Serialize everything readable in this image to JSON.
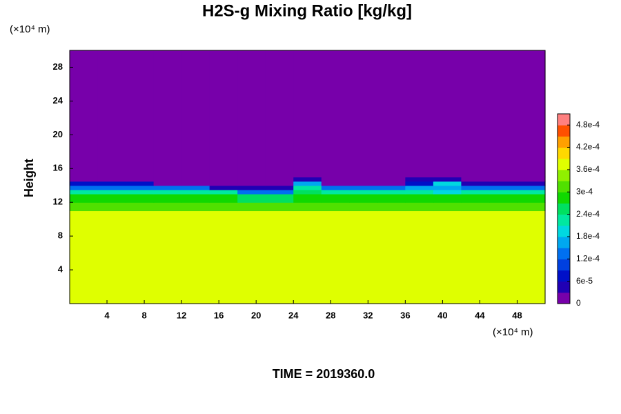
{
  "chart_data": {
    "type": "heatmap",
    "title": "H2S-g Mixing Ratio [kg/kg]",
    "ylabel": "Height",
    "x_unit": "(×10⁴ m)",
    "y_unit": "(×10⁴ m)",
    "footer": "TIME = 2019360.0",
    "xlim": [
      0,
      51
    ],
    "ylim": [
      0,
      30
    ],
    "xticks": [
      4,
      8,
      12,
      16,
      20,
      24,
      28,
      32,
      36,
      40,
      44,
      48
    ],
    "yticks": [
      4,
      8,
      12,
      16,
      20,
      24,
      28
    ],
    "x_edges": [
      0,
      3,
      6,
      9,
      12,
      15,
      18,
      21,
      24,
      27,
      30,
      33,
      36,
      39,
      42,
      45,
      48,
      51
    ],
    "y_edges": [
      0,
      11,
      12,
      13,
      13.5,
      14,
      14.5,
      15,
      30
    ],
    "z": [
      [
        0.00037,
        0.00037,
        0.00037,
        0.00037,
        0.00037,
        0.00037,
        0.00037,
        0.00037,
        0.00037,
        0.00037,
        0.00037,
        0.00037,
        0.00037,
        0.00037,
        0.00037,
        0.00037,
        0.00037
      ],
      [
        0.00033,
        0.00033,
        0.00033,
        0.00033,
        0.00033,
        0.00033,
        0.00033,
        0.00033,
        0.00033,
        0.00033,
        0.00033,
        0.00033,
        0.00033,
        0.00033,
        0.00033,
        0.00033,
        0.00033
      ],
      [
        0.00029,
        0.00029,
        0.00029,
        0.00029,
        0.00029,
        0.00029,
        0.00024,
        0.00024,
        0.00029,
        0.00029,
        0.00029,
        0.00029,
        0.00029,
        0.00029,
        0.00029,
        0.00029,
        0.00029
      ],
      [
        0.00022,
        0.00022,
        0.00022,
        0.00022,
        0.00022,
        0.00022,
        0.00015,
        0.00015,
        0.00024,
        0.00022,
        0.00022,
        0.00022,
        0.00022,
        0.0002,
        0.00022,
        0.00022,
        0.00022
      ],
      [
        0.00014,
        0.00014,
        0.00014,
        0.00014,
        0.00014,
        5e-05,
        5e-05,
        5e-05,
        0.00021,
        0.00014,
        0.00014,
        0.00014,
        0.00016,
        0.00016,
        0.00014,
        0.00014,
        0.00015
      ],
      [
        8e-05,
        8e-05,
        8e-05,
        2e-05,
        2e-05,
        2e-05,
        2e-05,
        2e-05,
        0.00017,
        0,
        0,
        0,
        6e-05,
        0.00019,
        4e-05,
        4e-05,
        4e-05
      ],
      [
        0,
        0,
        0,
        0,
        0,
        0,
        0,
        0,
        4e-05,
        0,
        0,
        0,
        5e-05,
        5e-05,
        0,
        0,
        0
      ],
      [
        0,
        0,
        0,
        0,
        0,
        0,
        0,
        0,
        0,
        0,
        0,
        0,
        0,
        0,
        0,
        0,
        0
      ]
    ],
    "clim": [
      0,
      0.00051
    ],
    "colors": [
      "#7700aa",
      "#2000b4",
      "#0010c8",
      "#0040e0",
      "#0070f0",
      "#00a8f0",
      "#00d8e0",
      "#00e8a0",
      "#00e060",
      "#10d800",
      "#50e000",
      "#90f000",
      "#dfff00",
      "#ffd800",
      "#ffa000",
      "#ff5000",
      "#ff8080"
    ],
    "cticks": [
      0,
      {
        "value": 6e-05,
        "label": "6e-5"
      },
      {
        "value": 0.00012,
        "label": "1.2e-4"
      },
      {
        "value": 0.00018,
        "label": "1.8e-4"
      },
      {
        "value": 0.00024,
        "label": "2.4e-4"
      },
      {
        "value": 0.0003,
        "label": "3e-4"
      },
      {
        "value": 0.00036,
        "label": "3.6e-4"
      },
      {
        "value": 0.00042,
        "label": "4.2e-4"
      },
      {
        "value": 0.00048,
        "label": "4.8e-4"
      }
    ]
  }
}
